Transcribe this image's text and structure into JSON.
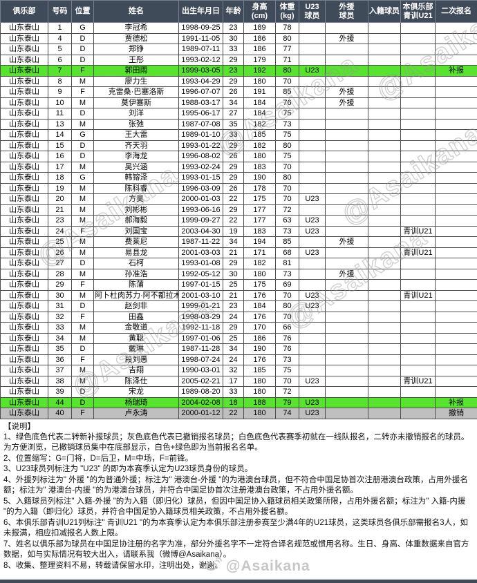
{
  "colors": {
    "header_bg": "#3F4B59",
    "green": "#57E32E",
    "gray": "#BFBFBF",
    "yellow": "#FFFF00",
    "blue": "#0070C6"
  },
  "watermark": {
    "text": "@Asaikana",
    "footer_text": "@Asaikana"
  },
  "table": {
    "headers": [
      "俱乐部",
      "号码",
      "位置",
      "姓名",
      "出生年月日",
      "年龄",
      "身高\n(cm)",
      "体重\n(kg)",
      "U23\n球员",
      "外援\n球员",
      "入籍球员",
      "本俱乐部\n青训U21",
      "二次报名"
    ],
    "rows": [
      {
        "club": "山东泰山",
        "no": "1",
        "pos": "G",
        "name": "李冠希",
        "dob": "1998-09-25",
        "age": "23",
        "height": "189",
        "weight": "78",
        "u23": "",
        "foreign": "",
        "naturalized": "",
        "youth": "",
        "second": "",
        "type": "white"
      },
      {
        "club": "山东泰山",
        "no": "4",
        "pos": "D",
        "name": "贾德松",
        "dob": "1991-11-05",
        "age": "30",
        "height": "186",
        "weight": "80",
        "u23": "",
        "foreign": "外援",
        "naturalized": "",
        "youth": "",
        "second": "",
        "type": "white"
      },
      {
        "club": "山东泰山",
        "no": "5",
        "pos": "D",
        "name": "郑铮",
        "dob": "1989-07-11",
        "age": "33",
        "height": "186",
        "weight": "77",
        "u23": "",
        "foreign": "",
        "naturalized": "",
        "youth": "",
        "second": "",
        "type": "white"
      },
      {
        "club": "山东泰山",
        "no": "6",
        "pos": "D",
        "name": "王彤",
        "dob": "1993-02-12",
        "age": "29",
        "height": "179",
        "weight": "71",
        "u23": "",
        "foreign": "",
        "naturalized": "",
        "youth": "",
        "second": "",
        "type": "white"
      },
      {
        "club": "山东泰山",
        "no": "7",
        "pos": "F",
        "name": "郭田雨",
        "dob": "1999-03-05",
        "age": "23",
        "height": "192",
        "weight": "80",
        "u23": "U23",
        "foreign": "",
        "naturalized": "",
        "youth": "",
        "second": "补报",
        "type": "green"
      },
      {
        "club": "山东泰山",
        "no": "8",
        "pos": "M",
        "name": "廖力生",
        "dob": "1993-04-29",
        "age": "29",
        "height": "180",
        "weight": "70",
        "u23": "",
        "foreign": "",
        "naturalized": "",
        "youth": "",
        "second": "",
        "type": "white"
      },
      {
        "club": "山东泰山",
        "no": "9",
        "pos": "F",
        "name": "克雷桑·巴塞洛斯",
        "dob": "1996-07-07",
        "age": "26",
        "height": "191",
        "weight": "85",
        "u23": "",
        "foreign": "外援",
        "naturalized": "",
        "youth": "",
        "second": "",
        "type": "white"
      },
      {
        "club": "山东泰山",
        "no": "10",
        "pos": "M",
        "name": "莫伊塞斯",
        "dob": "1988-03-17",
        "age": "34",
        "height": "184",
        "weight": "76",
        "u23": "",
        "foreign": "外援",
        "naturalized": "",
        "youth": "",
        "second": "",
        "type": "white"
      },
      {
        "club": "山东泰山",
        "no": "11",
        "pos": "D",
        "name": "刘洋",
        "dob": "1995-06-17",
        "age": "27",
        "height": "184",
        "weight": "75",
        "u23": "",
        "foreign": "",
        "naturalized": "",
        "youth": "",
        "second": "",
        "type": "white"
      },
      {
        "club": "山东泰山",
        "no": "13",
        "pos": "M",
        "name": "张弛",
        "dob": "1987-07-08",
        "age": "35",
        "height": "182",
        "weight": "73",
        "u23": "",
        "foreign": "",
        "naturalized": "",
        "youth": "",
        "second": "",
        "type": "white"
      },
      {
        "club": "山东泰山",
        "no": "14",
        "pos": "G",
        "name": "王大雷",
        "dob": "1989-01-10",
        "age": "33",
        "height": "185",
        "weight": "75",
        "u23": "",
        "foreign": "",
        "naturalized": "",
        "youth": "",
        "second": "",
        "type": "white"
      },
      {
        "club": "山东泰山",
        "no": "15",
        "pos": "D",
        "name": "齐天羽",
        "dob": "1993-01-22",
        "age": "29",
        "height": "182",
        "weight": "80",
        "u23": "",
        "foreign": "",
        "naturalized": "",
        "youth": "",
        "second": "",
        "type": "white"
      },
      {
        "club": "山东泰山",
        "no": "16",
        "pos": "D",
        "name": "李海龙",
        "dob": "1996-08-02",
        "age": "26",
        "height": "180",
        "weight": "75",
        "u23": "",
        "foreign": "",
        "naturalized": "",
        "youth": "",
        "second": "",
        "type": "white"
      },
      {
        "club": "山东泰山",
        "no": "17",
        "pos": "M",
        "name": "吴兴涵",
        "dob": "1993-02-24",
        "age": "29",
        "height": "183",
        "weight": "70",
        "u23": "",
        "foreign": "",
        "naturalized": "",
        "youth": "",
        "second": "",
        "type": "white"
      },
      {
        "club": "山东泰山",
        "no": "18",
        "pos": "G",
        "name": "韩镕泽",
        "dob": "1993-01-15",
        "age": "29",
        "height": "190",
        "weight": "80",
        "u23": "",
        "foreign": "",
        "naturalized": "",
        "youth": "",
        "second": "",
        "type": "white"
      },
      {
        "club": "山东泰山",
        "no": "19",
        "pos": "M",
        "name": "陈科睿",
        "dob": "1996-03-09",
        "age": "26",
        "height": "178",
        "weight": "70",
        "u23": "",
        "foreign": "",
        "naturalized": "",
        "youth": "",
        "second": "",
        "type": "white"
      },
      {
        "club": "山东泰山",
        "no": "20",
        "pos": "M",
        "name": "方昊",
        "dob": "2000-01-03",
        "age": "22",
        "height": "175",
        "weight": "70",
        "u23": "U23",
        "foreign": "",
        "naturalized": "",
        "youth": "",
        "second": "",
        "type": "white"
      },
      {
        "club": "山东泰山",
        "no": "21",
        "pos": "M",
        "name": "刘彬彬",
        "dob": "1993-06-16",
        "age": "29",
        "height": "177",
        "weight": "72",
        "u23": "",
        "foreign": "",
        "naturalized": "",
        "youth": "",
        "second": "",
        "type": "white"
      },
      {
        "club": "山东泰山",
        "no": "23",
        "pos": "M",
        "name": "郝海毅",
        "dob": "1999-09-27",
        "age": "22",
        "height": "177",
        "weight": "63",
        "u23": "U23",
        "foreign": "",
        "naturalized": "",
        "youth": "",
        "second": "",
        "type": "white"
      },
      {
        "club": "山东泰山",
        "no": "24",
        "pos": "F",
        "name": "刘国宝",
        "dob": "2003-04-30",
        "age": "19",
        "height": "183",
        "weight": "73",
        "u23": "U23",
        "foreign": "",
        "naturalized": "",
        "youth": "青训U21",
        "second": "",
        "type": "white"
      },
      {
        "club": "山东泰山",
        "no": "25",
        "pos": "M",
        "name": "费莱尼",
        "dob": "1987-11-22",
        "age": "34",
        "height": "194",
        "weight": "85",
        "u23": "",
        "foreign": "外援",
        "naturalized": "",
        "youth": "",
        "second": "",
        "type": "white"
      },
      {
        "club": "山东泰山",
        "no": "26",
        "pos": "M",
        "name": "易县龙",
        "dob": "2001-03-03",
        "age": "21",
        "height": "171",
        "weight": "68",
        "u23": "U23",
        "foreign": "",
        "naturalized": "",
        "youth": "青训U21",
        "second": "",
        "type": "white"
      },
      {
        "club": "山东泰山",
        "no": "27",
        "pos": "D",
        "name": "石柯",
        "dob": "1993-01-08",
        "age": "29",
        "height": "182",
        "weight": "81",
        "u23": "",
        "foreign": "",
        "naturalized": "",
        "youth": "",
        "second": "",
        "type": "white"
      },
      {
        "club": "山东泰山",
        "no": "28",
        "pos": "M",
        "name": "孙准浩",
        "dob": "1992-05-12",
        "age": "30",
        "height": "180",
        "weight": "73",
        "u23": "",
        "foreign": "外援",
        "naturalized": "",
        "youth": "",
        "second": "",
        "type": "white"
      },
      {
        "club": "山东泰山",
        "no": "29",
        "pos": "F",
        "name": "陈蒲",
        "dob": "1997-01-15",
        "age": "25",
        "height": "175",
        "weight": "69",
        "u23": "",
        "foreign": "",
        "naturalized": "",
        "youth": "",
        "second": "",
        "type": "white"
      },
      {
        "club": "山东泰山",
        "no": "30",
        "pos": "M",
        "name": "阿卜杜肉苏力·阿不都拉木",
        "dob": "2001-03-10",
        "age": "21",
        "height": "176",
        "weight": "70",
        "u23": "U23",
        "foreign": "",
        "naturalized": "",
        "youth": "青训U21",
        "second": "",
        "type": "white"
      },
      {
        "club": "山东泰山",
        "no": "31",
        "pos": "D",
        "name": "赵剑非",
        "dob": "1999-01-21",
        "age": "23",
        "height": "184",
        "weight": "80",
        "u23": "U23",
        "foreign": "",
        "naturalized": "",
        "youth": "",
        "second": "",
        "type": "white"
      },
      {
        "club": "山东泰山",
        "no": "32",
        "pos": "F",
        "name": "田鑫",
        "dob": "1998-03-29",
        "age": "24",
        "height": "176",
        "weight": "70",
        "u23": "",
        "foreign": "",
        "naturalized": "",
        "youth": "",
        "second": "",
        "type": "white"
      },
      {
        "club": "山东泰山",
        "no": "33",
        "pos": "M",
        "name": "金敬道",
        "dob": "1992-11-18",
        "age": "29",
        "height": "170",
        "weight": "66",
        "u23": "",
        "foreign": "",
        "naturalized": "",
        "youth": "",
        "second": "",
        "type": "white"
      },
      {
        "club": "山东泰山",
        "no": "34",
        "pos": "M",
        "name": "黄聪",
        "dob": "1997-01-06",
        "age": "25",
        "height": "186",
        "weight": "76",
        "u23": "",
        "foreign": "",
        "naturalized": "",
        "youth": "",
        "second": "",
        "type": "white"
      },
      {
        "club": "山东泰山",
        "no": "35",
        "pos": "D",
        "name": "戴琳",
        "dob": "1987-11-28",
        "age": "34",
        "height": "190",
        "weight": "76",
        "u23": "",
        "foreign": "",
        "naturalized": "",
        "youth": "",
        "second": "",
        "type": "white"
      },
      {
        "club": "山东泰山",
        "no": "36",
        "pos": "F",
        "name": "段刘愚",
        "dob": "1998-07-24",
        "age": "24",
        "height": "176",
        "weight": "73",
        "u23": "",
        "foreign": "",
        "naturalized": "",
        "youth": "",
        "second": "",
        "type": "white"
      },
      {
        "club": "山东泰山",
        "no": "37",
        "pos": "M",
        "name": "吉翔",
        "dob": "1990-03-01",
        "age": "32",
        "height": "185",
        "weight": "75",
        "u23": "",
        "foreign": "",
        "naturalized": "",
        "youth": "",
        "second": "",
        "type": "white"
      },
      {
        "club": "山东泰山",
        "no": "38",
        "pos": "M",
        "name": "陈泽仕",
        "dob": "2005-02-21",
        "age": "17",
        "height": "180",
        "weight": "70",
        "u23": "U23",
        "foreign": "",
        "naturalized": "",
        "youth": "青训U21",
        "second": "",
        "type": "white"
      },
      {
        "club": "山东泰山",
        "no": "39",
        "pos": "D",
        "name": "宋龙",
        "dob": "1989-08-20",
        "age": "33",
        "height": "180",
        "weight": "72",
        "u23": "",
        "foreign": "",
        "naturalized": "",
        "youth": "",
        "second": "",
        "type": "white"
      },
      {
        "club": "山东泰山",
        "no": "44",
        "pos": "D",
        "name": "杨瑞琦",
        "dob": "2004-02-08",
        "age": "18",
        "height": "188",
        "weight": "79",
        "u23": "U23",
        "foreign": "",
        "naturalized": "",
        "youth": "",
        "second": "补报",
        "type": "green"
      },
      {
        "club": "山东泰山",
        "no": "40",
        "pos": "F",
        "name": "卢永涛",
        "dob": "2000-01-12",
        "age": "22",
        "height": "180",
        "weight": "74",
        "u23": "U23",
        "foreign": "",
        "naturalized": "",
        "youth": "",
        "second": "撤销",
        "type": "gray"
      }
    ]
  },
  "notes": {
    "title": "【说明】",
    "items": [
      "1、绿色底色代表二转新补报球员；灰色底色代表已撤销报名球员；白色底色代表赛季初就在一线队报名，二转亦未撤销报名的球员。为方便浏览，已撤销球员集中在底部显示，白色+绿色即为当前报名名单。",
      "2、位置缩写：G=门将，D=后卫，M=中场，F=前锋。",
      "3、U23球员列标注为 \"U23\" 的即为本赛季认定为U23球员身份的球员。",
      "4、外援列标注为\" 外援 \"的为普通外援；标注为\" 港澳台-外援 \"的为港澳台球员，但不符合中国足协首次注册港澳台政策，占用外援名额；标注为\" 港澳台-内援 \"的为港澳台球员，并符合中国足协首次注册港澳台政策，不占用外援名额。",
      "5、入籍球员列标注\" 入籍-外援 \"的为入籍（即归化）球员，但因中国足协入籍球员相关政策所限，占用外援名额；标注为\" 入籍-内援 \"的为入籍（即归化）球员，并符合中国足协入籍球员相关政策，不占用外援名额。",
      "6、本俱乐部青训U21列标注\" 青训U21 \"的为本赛季认定为本俱乐部注册参赛至少满4年的U21球员，这类球员各俱乐部需报名3人，如未报满，相应扣减报名人数上限。",
      "7、姓名以俱乐部为球员在中国足协注册的名字为准，部分外援名字不一定符合译名规范或惯用名称。生日、身高、体重数据来自官方数据，如与实际情况有较大出入，请联系我（微博@Asaikana）。",
      "8、收集、整理资料不易，转载请保留水印，注明出处，谢谢。"
    ]
  }
}
